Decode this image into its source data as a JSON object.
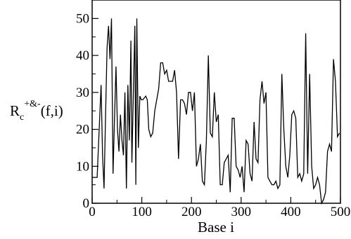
{
  "chart_data": {
    "type": "line",
    "title": "",
    "xlabel": "Base i",
    "ylabel": {
      "base": "R",
      "subscript": "c",
      "superscript": "+&-",
      "suffix": "(f,i)"
    },
    "xlim": [
      0,
      500
    ],
    "ylim": [
      0,
      55
    ],
    "xticks": [
      0,
      100,
      200,
      300,
      400,
      500
    ],
    "yticks": [
      0,
      10,
      20,
      30,
      40,
      50
    ],
    "xtick_labels": [
      "0",
      "100",
      "200",
      "300",
      "400",
      "500"
    ],
    "ytick_labels": [
      "0",
      "10",
      "20",
      "30",
      "40",
      "50"
    ],
    "grid": false,
    "legend": "none",
    "line_color": "#000000",
    "series": [
      {
        "x": [
          0,
          10,
          18,
          21,
          24,
          27,
          30,
          33,
          36,
          39,
          42,
          45,
          48,
          51,
          54,
          57,
          60,
          63,
          66,
          69,
          72,
          75,
          78,
          80,
          83,
          86,
          88,
          90,
          93,
          96,
          99,
          102,
          108,
          111,
          114,
          118,
          122,
          126,
          130,
          134,
          138,
          142,
          146,
          150,
          154,
          158,
          162,
          166,
          170,
          174,
          178,
          182,
          186,
          190,
          194,
          198,
          202,
          206,
          210,
          214,
          218,
          222,
          226,
          230,
          234,
          238,
          242,
          246,
          250,
          254,
          258,
          262,
          266,
          270,
          274,
          278,
          282,
          286,
          290,
          294,
          298,
          302,
          306,
          310,
          314,
          318,
          322,
          326,
          330,
          334,
          338,
          342,
          346,
          350,
          354,
          358,
          362,
          366,
          370,
          374,
          378,
          382,
          386,
          390,
          394,
          398,
          402,
          406,
          410,
          414,
          418,
          422,
          426,
          430,
          434,
          438,
          442,
          446,
          450,
          454,
          458,
          462,
          466,
          470,
          474,
          478,
          482,
          486,
          490,
          494,
          498
        ],
        "y": [
          7,
          7,
          32,
          13,
          4,
          24,
          42,
          48,
          39,
          50,
          8,
          23,
          37,
          20,
          14,
          24,
          17,
          13,
          30,
          4,
          32,
          17,
          44,
          11,
          30,
          48,
          5,
          50,
          15,
          29,
          28,
          28,
          29,
          28,
          20,
          18,
          19,
          25,
          28,
          31,
          38,
          38,
          35,
          36,
          33,
          33,
          33,
          36,
          30,
          12,
          28,
          28,
          27,
          24,
          30,
          30,
          25,
          30,
          10,
          12,
          16,
          6,
          5,
          17,
          40,
          19,
          18,
          30,
          22,
          24,
          5,
          5,
          11,
          12,
          13,
          3,
          23,
          23,
          10,
          9,
          7,
          10,
          3,
          17,
          16,
          8,
          6,
          22,
          12,
          11,
          28,
          33,
          27,
          30,
          7,
          6,
          5,
          5,
          6,
          4,
          5,
          35,
          20,
          10,
          7,
          13,
          24,
          25,
          23,
          7,
          8,
          6,
          8,
          46,
          8,
          35,
          10,
          4,
          5,
          7,
          5,
          0,
          1,
          3,
          14,
          16,
          14,
          39,
          33,
          18,
          19
        ]
      }
    ]
  }
}
